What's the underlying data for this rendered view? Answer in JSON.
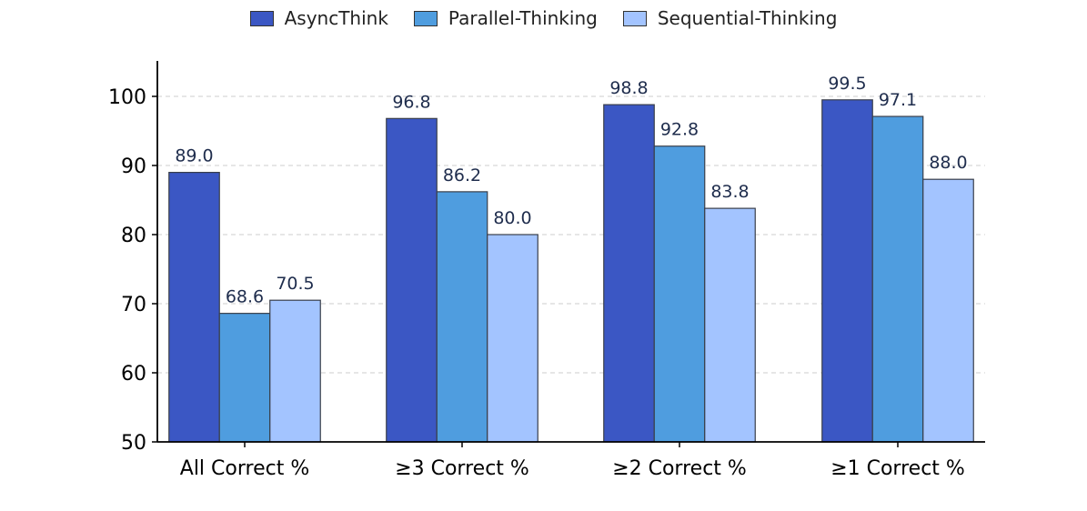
{
  "chart_data": {
    "type": "bar",
    "title": "",
    "xlabel": "",
    "ylabel": "",
    "categories": [
      "All Correct %",
      "≥3 Correct %",
      "≥2 Correct %",
      "≥1 Correct %"
    ],
    "series": [
      {
        "name": "AsyncThink",
        "color": "#3b57c4",
        "values": [
          89.0,
          96.8,
          98.8,
          99.5
        ]
      },
      {
        "name": "Parallel-Thinking",
        "color": "#4f9ddf",
        "values": [
          68.6,
          86.2,
          92.8,
          97.1
        ]
      },
      {
        "name": "Sequential-Thinking",
        "color": "#a3c4ff",
        "values": [
          70.5,
          80.0,
          83.8,
          88.0
        ]
      }
    ],
    "ylim": [
      50,
      105
    ],
    "yticks": [
      50,
      60,
      70,
      80,
      90,
      100
    ],
    "grid": "y-dashed",
    "legend_position": "top-center",
    "data_labels": true
  },
  "legend": {
    "items": [
      "AsyncThink",
      "Parallel-Thinking",
      "Sequential-Thinking"
    ]
  }
}
